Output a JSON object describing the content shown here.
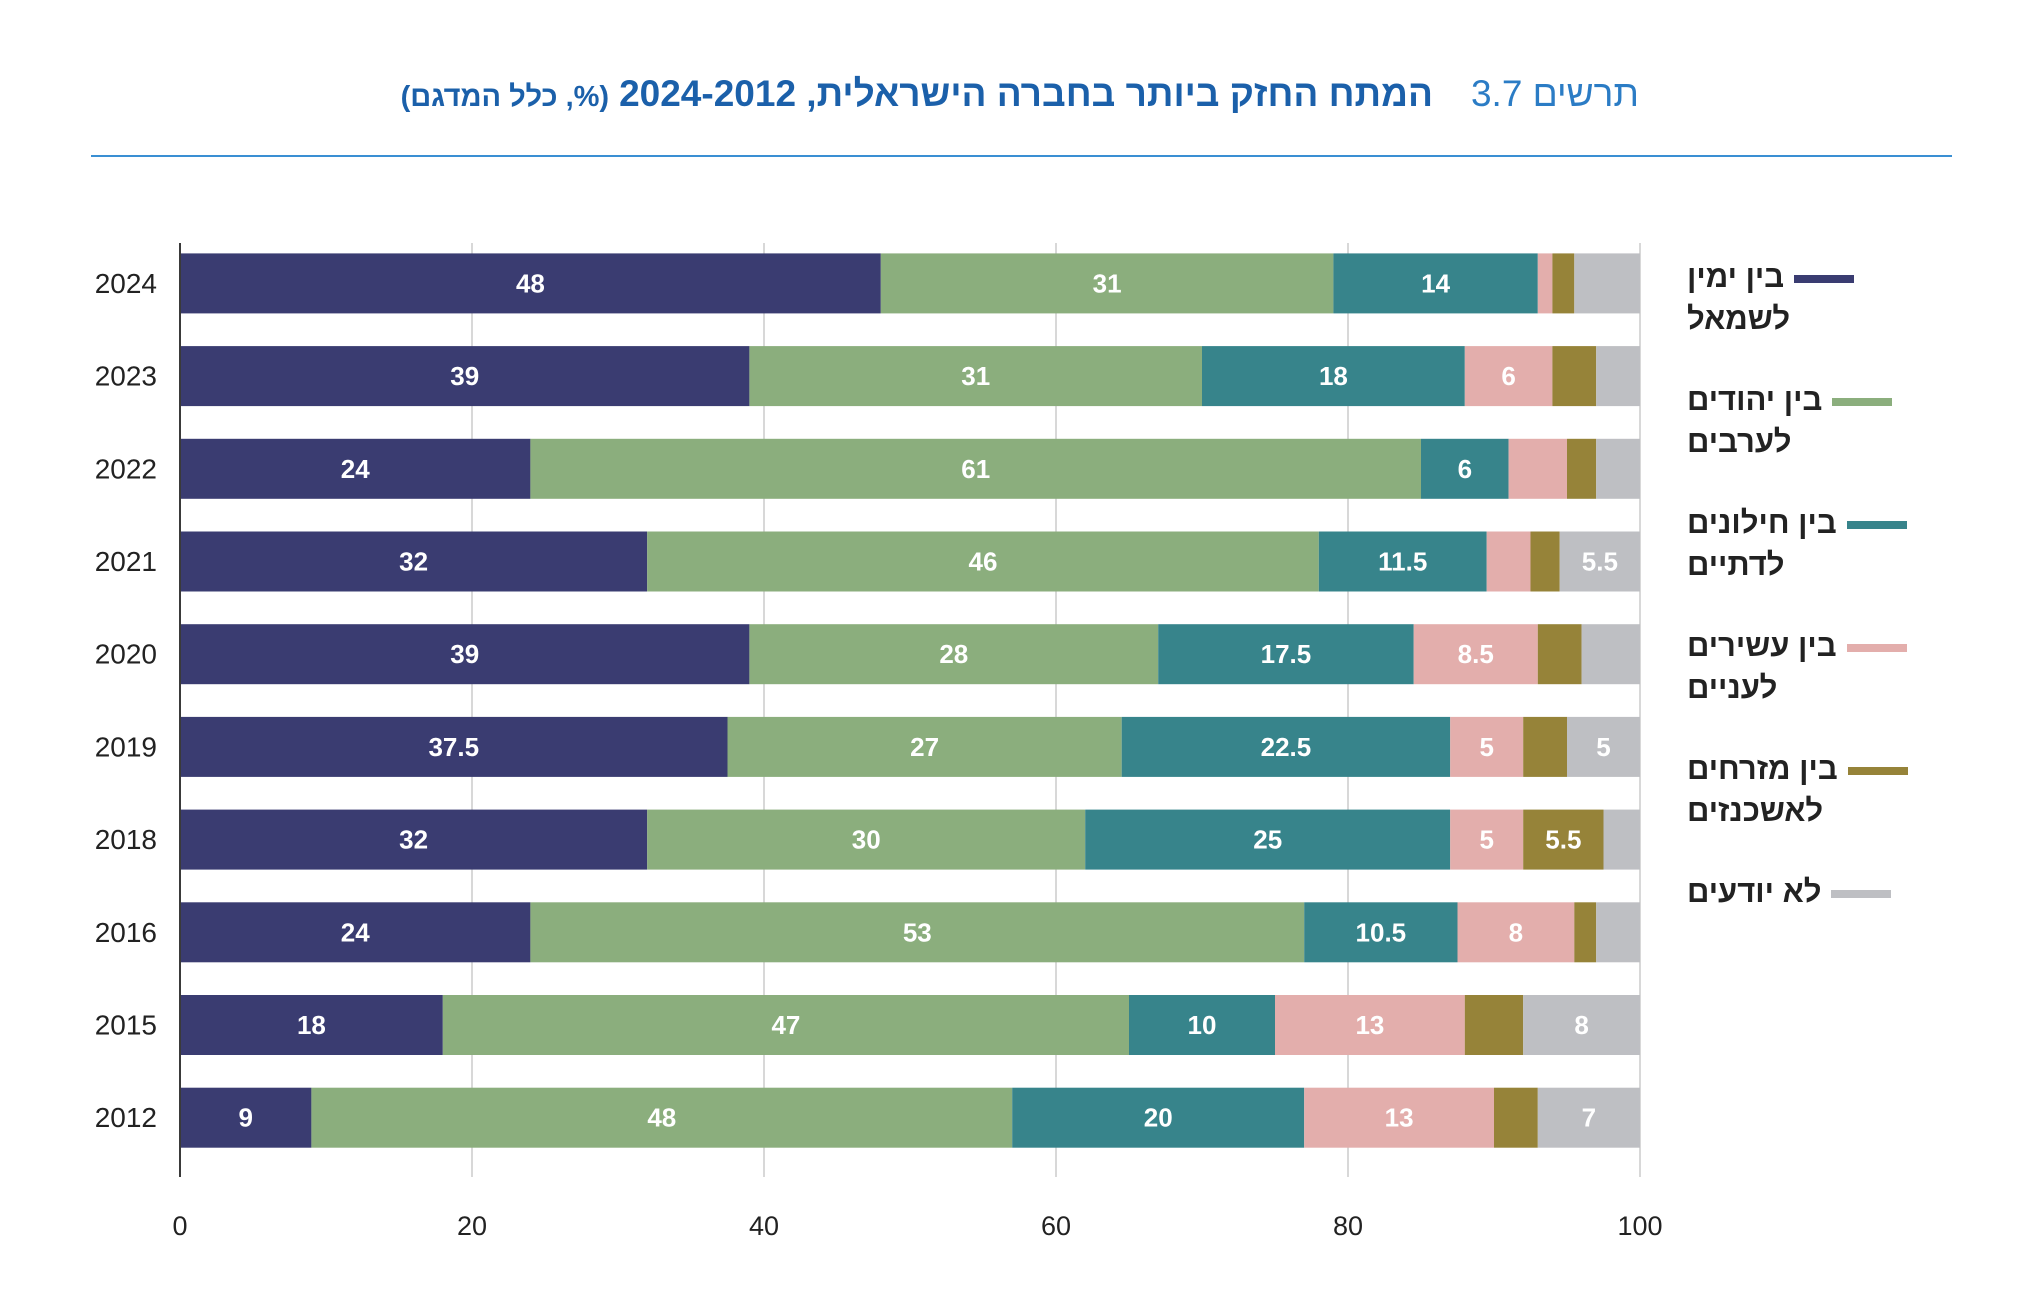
{
  "chart_data": {
    "type": "bar",
    "orientation": "horizontal",
    "stacked": true,
    "figure_label": "תרשים 3.7",
    "title": "המתח החזק ביותר בחברה הישראלית, 2024-2012",
    "subtitle": "(%, כלל המדגם)",
    "categories": [
      "2024",
      "2023",
      "2022",
      "2021",
      "2020",
      "2019",
      "2018",
      "2016",
      "2015",
      "2012"
    ],
    "xlim": [
      0,
      100
    ],
    "xticks": [
      0,
      20,
      40,
      60,
      80,
      100
    ],
    "grid": true,
    "legend_position": "right",
    "series": [
      {
        "name": "בין ימין לשמאל",
        "color": "#3a3c71",
        "values": [
          48,
          39,
          24,
          32,
          39,
          37.5,
          32,
          24,
          18,
          9
        ],
        "data_labels": [
          "48",
          "39",
          "24",
          "32",
          "39",
          "37.5",
          "32",
          "24",
          "18",
          "9"
        ]
      },
      {
        "name": "בין יהודים לערבים",
        "color": "#8bae7d",
        "values": [
          31,
          31,
          61,
          46,
          28,
          27,
          30,
          53,
          47,
          48
        ],
        "data_labels": [
          "31",
          "31",
          "61",
          "46",
          "28",
          "27",
          "30",
          "53",
          "47",
          "48"
        ]
      },
      {
        "name": "בין חילונים לדתיים",
        "color": "#37848b",
        "values": [
          14,
          18,
          6,
          11.5,
          17.5,
          22.5,
          25,
          10.5,
          10,
          20
        ],
        "data_labels": [
          "14",
          "18",
          "6",
          "11.5",
          "17.5",
          "22.5",
          "25",
          "10.5",
          "10",
          "20"
        ]
      },
      {
        "name": "בין עשירים לעניים",
        "color": "#e3aeac",
        "values": [
          1,
          6,
          4,
          3,
          8.5,
          5,
          5,
          8,
          13,
          13
        ],
        "data_labels": [
          null,
          "6",
          null,
          null,
          "8.5",
          "5",
          "5",
          "8",
          "13",
          "13"
        ]
      },
      {
        "name": "בין מזרחים לאשכנזים",
        "color": "#968339",
        "values": [
          1.5,
          3,
          2,
          2,
          3,
          3,
          5.5,
          1.5,
          4,
          3
        ],
        "data_labels": [
          null,
          null,
          null,
          null,
          null,
          null,
          "5.5",
          null,
          null,
          null
        ]
      },
      {
        "name": "לא יודעים",
        "color": "#bebfc3",
        "values": [
          4.5,
          3,
          3,
          5.5,
          4,
          5,
          2.5,
          3,
          8,
          7
        ],
        "data_labels": [
          null,
          null,
          null,
          "5.5",
          null,
          "5",
          null,
          null,
          "8",
          "7"
        ]
      }
    ]
  }
}
